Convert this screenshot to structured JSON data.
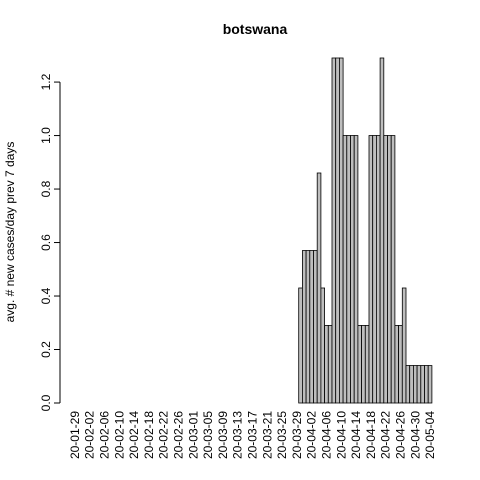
{
  "chart_data": {
    "type": "bar",
    "title": "botswana",
    "ylabel": "avg. # new cases/day prev  7  days",
    "categories": [
      "20-01-29",
      null,
      null,
      null,
      "20-02-02",
      null,
      null,
      null,
      "20-02-06",
      null,
      null,
      null,
      "20-02-10",
      null,
      null,
      null,
      "20-02-14",
      null,
      null,
      null,
      "20-02-18",
      null,
      null,
      null,
      "20-02-22",
      null,
      null,
      null,
      "20-02-26",
      null,
      null,
      null,
      "20-03-01",
      null,
      null,
      null,
      "20-03-05",
      null,
      null,
      null,
      "20-03-09",
      null,
      null,
      null,
      "20-03-13",
      null,
      null,
      null,
      "20-03-17",
      null,
      null,
      null,
      "20-03-21",
      null,
      null,
      null,
      "20-03-25",
      null,
      null,
      null,
      "20-03-29",
      null,
      null,
      null,
      "20-04-02",
      null,
      null,
      null,
      "20-04-06",
      null,
      null,
      null,
      "20-04-10",
      null,
      null,
      null,
      "20-04-14",
      null,
      null,
      null,
      "20-04-18",
      null,
      null,
      null,
      "20-04-22",
      null,
      null,
      null,
      "20-04-26",
      null,
      null,
      null,
      "20-04-30",
      null,
      null,
      null,
      "20-05-04"
    ],
    "values": [
      0,
      0,
      0,
      0,
      0,
      0,
      0,
      0,
      0,
      0,
      0,
      0,
      0,
      0,
      0,
      0,
      0,
      0,
      0,
      0,
      0,
      0,
      0,
      0,
      0,
      0,
      0,
      0,
      0,
      0,
      0,
      0,
      0,
      0,
      0,
      0,
      0,
      0,
      0,
      0,
      0,
      0,
      0,
      0,
      0,
      0,
      0,
      0,
      0,
      0,
      0,
      0,
      0,
      0,
      0,
      0,
      0,
      0,
      0,
      0,
      0,
      0.43,
      0.57,
      0.57,
      0.57,
      0.57,
      0.86,
      0.43,
      0.29,
      0.29,
      1.29,
      1.29,
      1.29,
      1.0,
      1.0,
      1.0,
      1.0,
      0.29,
      0.29,
      0.29,
      1.0,
      1.0,
      1.0,
      1.29,
      1.0,
      1.0,
      1.0,
      0.29,
      0.29,
      0.43,
      0.14,
      0.14,
      0.14,
      0.14,
      0.14,
      0.14,
      0.14
    ],
    "color": "#bebebe",
    "ylim": [
      0,
      1.29
    ],
    "yticks": [
      {
        "value": 0,
        "label": "0.0"
      },
      0.2,
      0.4,
      0.6,
      0.8,
      {
        "value": 1,
        "label": "1.0"
      },
      1.2
    ]
  }
}
